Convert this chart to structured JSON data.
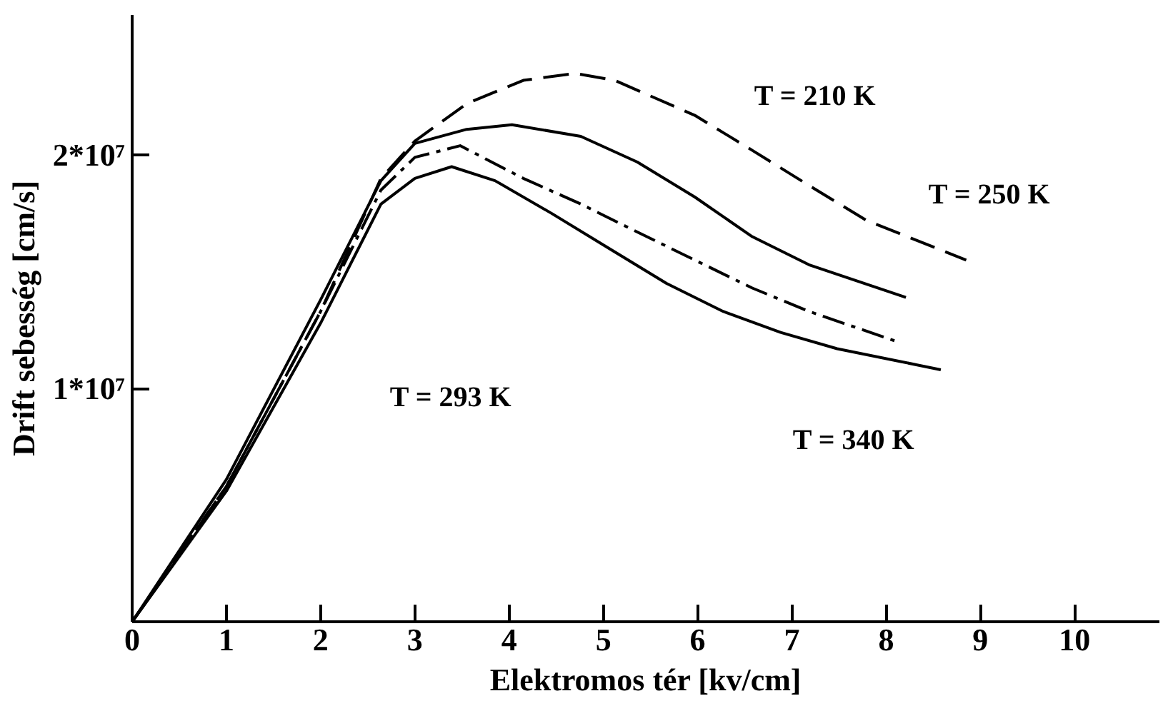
{
  "chart_data": {
    "type": "line",
    "xlabel": "Elektromos tér [kv/cm]",
    "ylabel": "Drift sebesség [cm/s]",
    "xlim": [
      0,
      10.9
    ],
    "ylim": [
      0,
      26000000.0
    ],
    "xticks": [
      0,
      1,
      2,
      3,
      4,
      5,
      6,
      7,
      8,
      9,
      10
    ],
    "yticks": [
      {
        "value": 10000000.0,
        "label": "1*10⁷"
      },
      {
        "value": 20000000.0,
        "label": "2*10⁷"
      }
    ],
    "grid": false,
    "marker": "none",
    "series": [
      {
        "color": "#000000",
        "line_style": "dashed",
        "x": [
          0,
          1,
          2,
          2.64,
          3,
          3.55,
          4.15,
          4.7,
          5.12,
          5.97,
          6.58,
          7.18,
          7.79,
          8.85
        ],
        "values": [
          0,
          5800000.0,
          13300000.0,
          19000000.0,
          20600000.0,
          22200000.0,
          23200000.0,
          23500000.0,
          23200000.0,
          21700000.0,
          20200000.0,
          18700000.0,
          17200000.0,
          15500000.0
        ]
      },
      {
        "color": "#000000",
        "line_style": "solid",
        "x": [
          0,
          1,
          2,
          2.64,
          3,
          3.55,
          4.03,
          4.76,
          5.36,
          5.97,
          6.58,
          7.18,
          8.21
        ],
        "values": [
          0,
          6100000.0,
          13800000.0,
          18900000.0,
          20500000.0,
          21100000.0,
          21300000.0,
          20800000.0,
          19700000.0,
          18200000.0,
          16500000.0,
          15300000.0,
          13900000.0
        ]
      },
      {
        "color": "#000000",
        "line_style": "dashdot",
        "x": [
          0,
          1,
          2,
          2.64,
          3,
          3.48,
          4.15,
          4.76,
          5.36,
          5.97,
          6.58,
          7.18,
          8.12
        ],
        "values": [
          0,
          5800000.0,
          13300000.0,
          18500000.0,
          19900000.0,
          20400000.0,
          19000000.0,
          17900000.0,
          16700000.0,
          15500000.0,
          14300000.0,
          13300000.0,
          12000000.0
        ]
      },
      {
        "color": "#000000",
        "line_style": "solid",
        "x": [
          0,
          1,
          2,
          2.64,
          3,
          3.39,
          3.85,
          4.45,
          5.06,
          5.67,
          6.27,
          6.88,
          7.48,
          8.58
        ],
        "values": [
          0,
          5600000.0,
          12800000.0,
          17900000.0,
          19000000.0,
          19500000.0,
          18900000.0,
          17500000.0,
          16000000.0,
          14500000.0,
          13300000.0,
          12400000.0,
          11700000.0,
          10800000.0
        ]
      }
    ],
    "annotations": [
      "T = 210 K",
      "T = 250 K",
      "T = 293 K",
      "T = 340 K"
    ]
  }
}
